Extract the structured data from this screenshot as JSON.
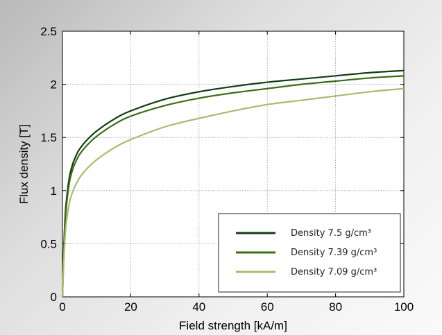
{
  "chart_data": {
    "type": "line",
    "xlabel": "Field strength [kA/m]",
    "ylabel": "Flux density [T]",
    "xlim": [
      0,
      100
    ],
    "ylim": [
      0,
      2.5
    ],
    "xticks": [
      "0",
      "20",
      "40",
      "60",
      "80",
      "100"
    ],
    "yticks": [
      "0",
      "0.5",
      "1",
      "1.5",
      "2",
      "2.5"
    ],
    "grid": true,
    "legend_position": "bottom-right",
    "series": [
      {
        "name": "Density 7.5 g/cm³",
        "color": "#0e3e12",
        "x": [
          0,
          0.5,
          1,
          2,
          3,
          4,
          5,
          7,
          10,
          15,
          20,
          30,
          40,
          50,
          60,
          70,
          80,
          90,
          100
        ],
        "y": [
          0,
          0.55,
          0.85,
          1.12,
          1.25,
          1.33,
          1.39,
          1.47,
          1.56,
          1.67,
          1.75,
          1.86,
          1.93,
          1.98,
          2.02,
          2.05,
          2.08,
          2.11,
          2.13
        ]
      },
      {
        "name": "Density 7.39 g/cm³",
        "color": "#3a6e12",
        "x": [
          0,
          0.5,
          1,
          2,
          3,
          4,
          5,
          7,
          10,
          15,
          20,
          30,
          40,
          50,
          60,
          70,
          80,
          90,
          100
        ],
        "y": [
          0,
          0.52,
          0.8,
          1.07,
          1.2,
          1.28,
          1.34,
          1.42,
          1.51,
          1.62,
          1.7,
          1.8,
          1.87,
          1.92,
          1.96,
          2.0,
          2.03,
          2.06,
          2.08
        ]
      },
      {
        "name": "Density 7.09 g/cm³",
        "color": "#a9bb6b",
        "x": [
          0,
          0.5,
          1,
          2,
          3,
          4,
          5,
          7,
          10,
          15,
          20,
          30,
          40,
          50,
          60,
          70,
          80,
          90,
          100
        ],
        "y": [
          0,
          0.42,
          0.66,
          0.88,
          0.99,
          1.06,
          1.12,
          1.2,
          1.29,
          1.4,
          1.48,
          1.6,
          1.68,
          1.75,
          1.81,
          1.85,
          1.89,
          1.93,
          1.96
        ]
      }
    ]
  }
}
